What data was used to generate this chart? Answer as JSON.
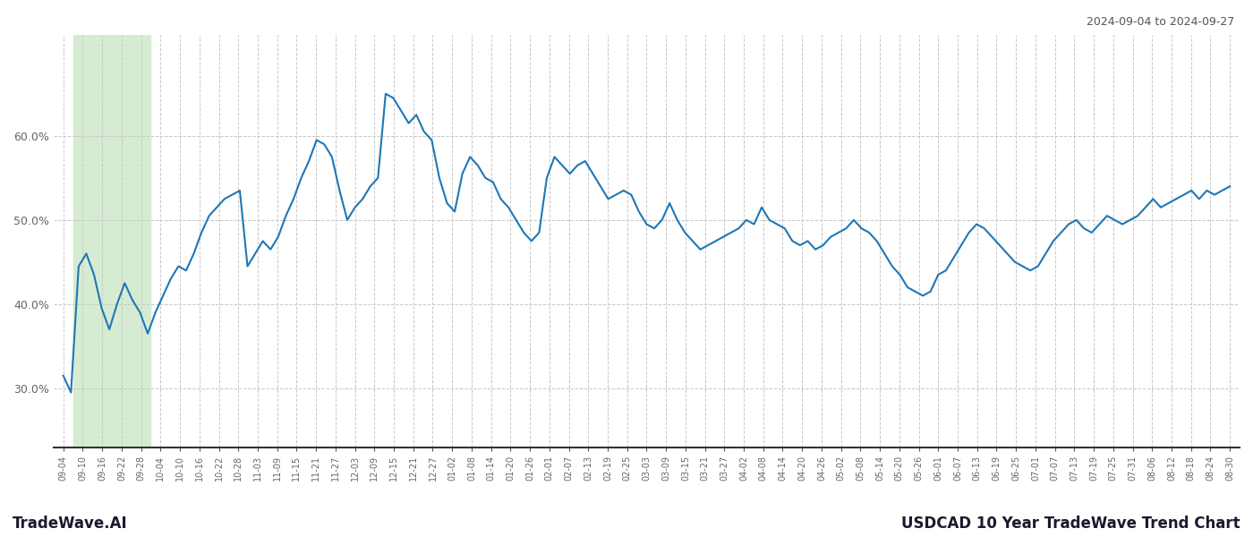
{
  "title_right": "2024-09-04 to 2024-09-27",
  "footer_left": "TradeWave.AI",
  "footer_right": "USDCAD 10 Year TradeWave Trend Chart",
  "line_color": "#1f77b4",
  "highlight_color": "#d6ecd2",
  "highlight_x_start_label": "09-10",
  "highlight_x_end_label": "09-28",
  "yticks": [
    30.0,
    40.0,
    50.0,
    60.0
  ],
  "ylim": [
    23,
    72
  ],
  "background_color": "#ffffff",
  "grid_color": "#c8c8c8",
  "x_labels": [
    "09-04",
    "09-10",
    "09-16",
    "09-22",
    "09-28",
    "10-04",
    "10-10",
    "10-16",
    "10-22",
    "10-28",
    "11-03",
    "11-09",
    "11-15",
    "11-21",
    "11-27",
    "12-03",
    "12-09",
    "12-15",
    "12-21",
    "12-27",
    "01-02",
    "01-08",
    "01-14",
    "01-20",
    "01-26",
    "02-01",
    "02-07",
    "02-13",
    "02-19",
    "02-25",
    "03-03",
    "03-09",
    "03-15",
    "03-21",
    "03-27",
    "04-02",
    "04-08",
    "04-14",
    "04-20",
    "04-26",
    "05-02",
    "05-08",
    "05-14",
    "05-20",
    "05-26",
    "06-01",
    "06-07",
    "06-13",
    "06-19",
    "06-25",
    "07-01",
    "07-07",
    "07-13",
    "07-19",
    "07-25",
    "07-31",
    "08-06",
    "08-12",
    "08-18",
    "08-24",
    "08-30"
  ],
  "y_values": [
    31.5,
    29.5,
    44.5,
    46.0,
    43.5,
    39.5,
    37.0,
    40.0,
    42.5,
    40.5,
    39.0,
    36.5,
    39.0,
    41.0,
    43.0,
    44.5,
    44.0,
    46.0,
    48.5,
    50.5,
    51.5,
    52.5,
    53.0,
    53.5,
    44.5,
    46.0,
    47.5,
    46.5,
    48.0,
    50.5,
    52.5,
    55.0,
    57.0,
    59.5,
    59.0,
    57.5,
    53.5,
    50.0,
    51.5,
    52.5,
    54.0,
    55.0,
    65.0,
    64.5,
    63.0,
    61.5,
    62.5,
    60.5,
    59.5,
    55.0,
    52.0,
    51.0,
    55.5,
    57.5,
    56.5,
    55.0,
    54.5,
    52.5,
    51.5,
    50.0,
    48.5,
    47.5,
    48.5,
    55.0,
    57.5,
    56.5,
    55.5,
    56.5,
    57.0,
    55.5,
    54.0,
    52.5,
    53.0,
    53.5,
    53.0,
    51.0,
    49.5,
    49.0,
    50.0,
    52.0,
    50.0,
    48.5,
    47.5,
    46.5,
    47.0,
    47.5,
    48.0,
    48.5,
    49.0,
    50.0,
    49.5,
    51.5,
    50.0,
    49.5,
    49.0,
    47.5,
    47.0,
    47.5,
    46.5,
    47.0,
    48.0,
    48.5,
    49.0,
    50.0,
    49.0,
    48.5,
    47.5,
    46.0,
    44.5,
    43.5,
    42.0,
    41.5,
    41.0,
    41.5,
    43.5,
    44.0,
    45.5,
    47.0,
    48.5,
    49.5,
    49.0,
    48.0,
    47.0,
    46.0,
    45.0,
    44.5,
    44.0,
    44.5,
    46.0,
    47.5,
    48.5,
    49.5,
    50.0,
    49.0,
    48.5,
    49.5,
    50.5,
    50.0,
    49.5,
    50.0,
    50.5,
    51.5,
    52.5,
    51.5,
    52.0,
    52.5,
    53.0,
    53.5,
    52.5,
    53.5,
    53.0,
    53.5,
    54.0
  ]
}
